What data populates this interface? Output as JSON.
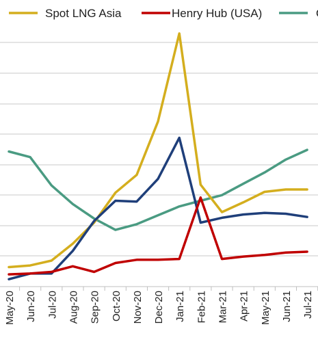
{
  "chart_data": {
    "type": "line",
    "categories": [
      "May-20",
      "Jun-20",
      "Jul-20",
      "Aug-20",
      "Sep-20",
      "Oct-20",
      "Nov-20",
      "Dec-20",
      "Jan-21",
      "Feb-21",
      "Mar-21",
      "Apr-21",
      "May-21",
      "Jun-21",
      "Jul-21"
    ],
    "series": [
      {
        "name": "Spot LNG Asia",
        "color": "#D4AE1E",
        "values": [
          0.5,
          0.7,
          1.3,
          3.4,
          6.0,
          9.7,
          11.9,
          18.5,
          29.4,
          10.7,
          7.3,
          8.5,
          9.8,
          10.1,
          10.1
        ]
      },
      {
        "name": "Henry Hub (USA)",
        "color": "#C00000",
        "values": [
          -0.4,
          -0.3,
          -0.1,
          0.6,
          -0.1,
          1.0,
          1.4,
          1.4,
          1.5,
          9.1,
          1.5,
          1.8,
          2.0,
          2.3,
          2.4
        ]
      },
      {
        "name": "O",
        "color": "#4A9B82",
        "values": [
          14.8,
          14.1,
          10.6,
          8.3,
          6.5,
          5.1,
          5.8,
          6.9,
          8.0,
          8.7,
          9.4,
          10.8,
          12.2,
          13.8,
          15.0
        ]
      },
      {
        "name": "",
        "color": "#1F3F7A",
        "values": [
          -1.0,
          -0.3,
          -0.3,
          2.5,
          6.2,
          8.7,
          8.6,
          11.4,
          16.5,
          6.0,
          6.6,
          7.0,
          7.2,
          7.1,
          6.7
        ]
      }
    ],
    "ylim": [
      -2,
      31
    ],
    "grid": true,
    "legend_position": "top"
  }
}
